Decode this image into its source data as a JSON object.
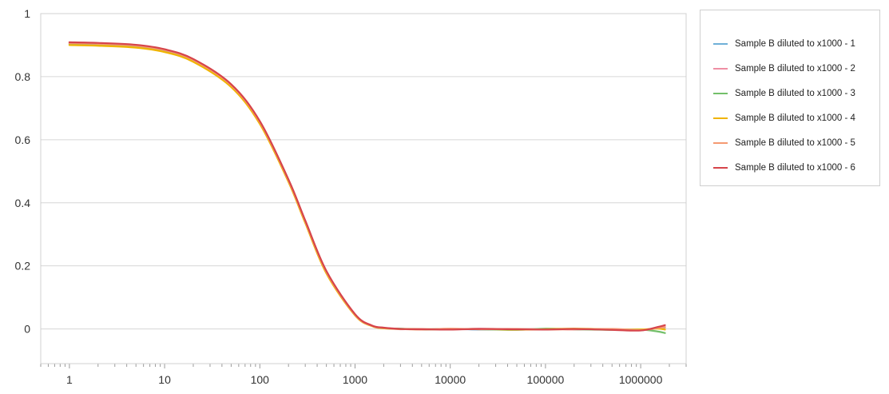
{
  "chart_data": {
    "type": "line",
    "title": "",
    "xlabel": "",
    "ylabel": "",
    "x_scale": "log",
    "xlim": [
      0.5,
      3000000
    ],
    "ylim": [
      -0.11,
      1
    ],
    "grid": "horizontal",
    "legend_position": "right",
    "x_ticks": [
      "1",
      "10",
      "100",
      "1000",
      "10000",
      "100000",
      "1000000"
    ],
    "y_ticks": [
      "1",
      "0.8",
      "0.6",
      "0.4",
      "0.2",
      "0"
    ],
    "x": [
      1,
      2,
      5,
      10,
      20,
      50,
      100,
      200,
      300,
      500,
      1000,
      1500,
      2000,
      3000,
      5000,
      10000,
      20000,
      50000,
      100000,
      200000,
      500000,
      1000000,
      1500000,
      1800000
    ],
    "series": [
      {
        "name": "Sample B diluted to x1000 - 1",
        "color": "#6fb0d8",
        "values": [
          0.905,
          0.903,
          0.897,
          0.883,
          0.852,
          0.772,
          0.655,
          0.47,
          0.34,
          0.18,
          0.045,
          0.01,
          0.003,
          0.0,
          -0.001,
          0.0,
          -0.002,
          0.0,
          -0.001,
          0.0,
          -0.002,
          -0.004,
          0.002,
          0.004
        ]
      },
      {
        "name": "Sample B diluted to x1000 - 2",
        "color": "#ef8fa4",
        "values": [
          0.907,
          0.905,
          0.899,
          0.885,
          0.854,
          0.774,
          0.657,
          0.472,
          0.342,
          0.182,
          0.046,
          0.011,
          0.003,
          -0.001,
          0.0,
          -0.002,
          0.001,
          -0.001,
          0.0,
          -0.002,
          0.0,
          -0.003,
          0.004,
          0.007
        ]
      },
      {
        "name": "Sample B diluted to x1000 - 3",
        "color": "#73bf6a",
        "values": [
          0.903,
          0.901,
          0.895,
          0.881,
          0.85,
          0.77,
          0.653,
          0.468,
          0.338,
          0.178,
          0.044,
          0.01,
          0.002,
          0.001,
          -0.002,
          0.0,
          -0.001,
          -0.003,
          0.001,
          -0.001,
          -0.003,
          -0.002,
          -0.008,
          -0.013
        ]
      },
      {
        "name": "Sample B diluted to x1000 - 4",
        "color": "#f0b400",
        "values": [
          0.9,
          0.898,
          0.892,
          0.878,
          0.847,
          0.767,
          0.65,
          0.466,
          0.336,
          0.176,
          0.043,
          0.009,
          0.002,
          0.0,
          -0.001,
          -0.001,
          0.0,
          -0.002,
          -0.001,
          0.001,
          -0.001,
          -0.002,
          0.001,
          -0.002
        ]
      },
      {
        "name": "Sample B diluted to x1000 - 5",
        "color": "#f59a72",
        "values": [
          0.906,
          0.904,
          0.898,
          0.884,
          0.853,
          0.773,
          0.656,
          0.471,
          0.341,
          0.181,
          0.045,
          0.01,
          0.003,
          0.0,
          -0.002,
          0.001,
          -0.001,
          0.0,
          -0.002,
          -0.001,
          0.0,
          -0.004,
          0.003,
          0.005
        ]
      },
      {
        "name": "Sample B diluted to x1000 - 6",
        "color": "#d6444a",
        "values": [
          0.909,
          0.907,
          0.901,
          0.887,
          0.856,
          0.776,
          0.659,
          0.474,
          0.344,
          0.184,
          0.047,
          0.011,
          0.004,
          0.0,
          -0.001,
          -0.002,
          0.0,
          -0.001,
          -0.002,
          0.0,
          -0.003,
          -0.005,
          0.006,
          0.012
        ]
      }
    ]
  }
}
